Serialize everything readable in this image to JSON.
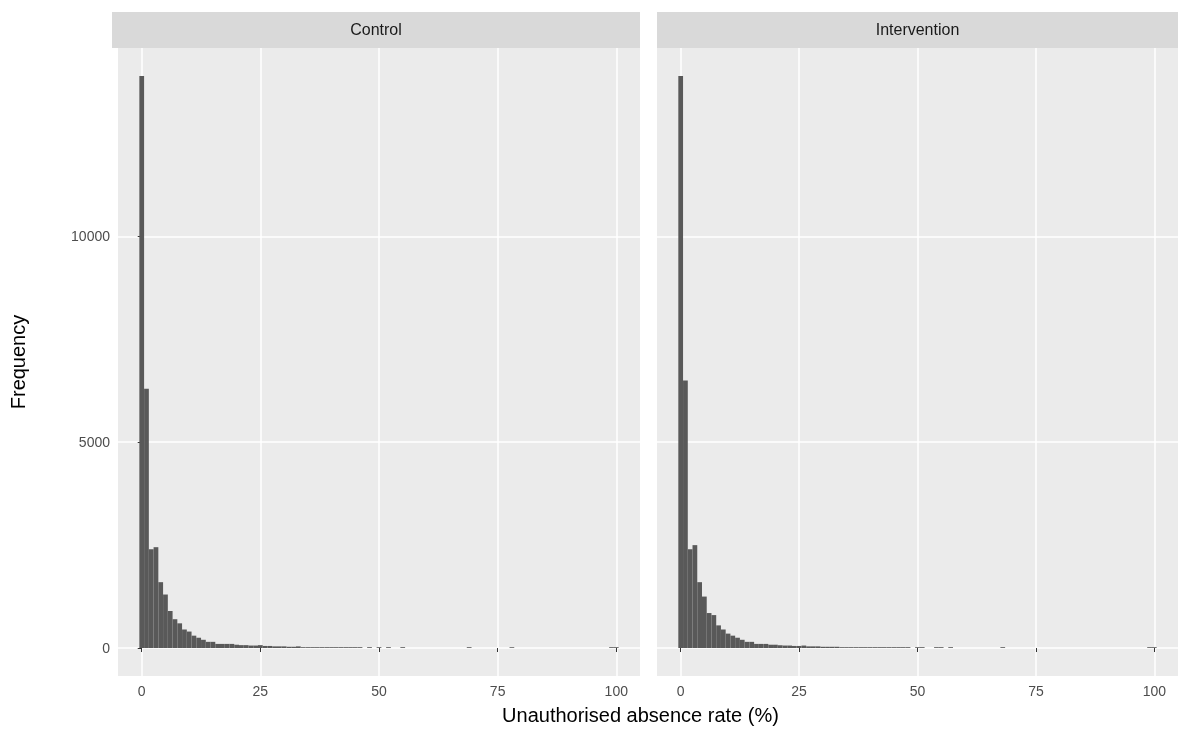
{
  "chart_data": [
    {
      "type": "histogram",
      "title": "Control",
      "xlabel": "Unauthorised absence rate (%)",
      "ylabel": "Frequency",
      "color": "#595959",
      "grid": true,
      "bins": [
        -0.5,
        0.5,
        1.5,
        2.5,
        3.5,
        4.5,
        5.5,
        6.5,
        7.5,
        8.5,
        9.5,
        10.5,
        11.5,
        12.5,
        13.5,
        14.5,
        15.5,
        16.5,
        17.5,
        18.5,
        19.5,
        20.5,
        21.5,
        22.5,
        23.5,
        24.5,
        25.5,
        26.5,
        27.5,
        28.5,
        29.5,
        30.5,
        31.5,
        32.5,
        33.5,
        34.5,
        35.5,
        36.5,
        37.5,
        38.5,
        39.5,
        40.5,
        41.5,
        42.5,
        43.5,
        44.5,
        45.5,
        46.5,
        47.5,
        48.5,
        49.5,
        50.5,
        51.5,
        52.5,
        53.5,
        54.5,
        55.5,
        56.5,
        57.5,
        58.5,
        59.5,
        60.5,
        61.5,
        62.5,
        63.5,
        64.5,
        65.5,
        66.5,
        67.5,
        68.5,
        69.5,
        70.5,
        71.5,
        72.5,
        73.5,
        74.5,
        75.5,
        76.5,
        77.5,
        78.5,
        79.5,
        80.5,
        81.5,
        82.5,
        83.5,
        84.5,
        85.5,
        86.5,
        87.5,
        88.5,
        89.5,
        90.5,
        91.5,
        92.5,
        93.5,
        94.5,
        95.5,
        96.5,
        97.5,
        98.5,
        99.5,
        100.5
      ],
      "values": [
        13900,
        6300,
        2400,
        2450,
        1600,
        1300,
        900,
        700,
        600,
        450,
        400,
        300,
        250,
        200,
        150,
        150,
        100,
        100,
        100,
        100,
        80,
        70,
        70,
        60,
        60,
        70,
        50,
        50,
        40,
        40,
        40,
        30,
        30,
        40,
        20,
        20,
        20,
        20,
        20,
        20,
        20,
        20,
        20,
        20,
        20,
        20,
        20,
        0,
        20,
        0,
        20,
        0,
        20,
        0,
        0,
        20,
        0,
        0,
        0,
        0,
        0,
        0,
        0,
        0,
        0,
        0,
        0,
        0,
        0,
        20,
        0,
        0,
        0,
        0,
        0,
        0,
        0,
        0,
        20,
        0,
        0,
        0,
        0,
        0,
        0,
        0,
        0,
        0,
        0,
        0,
        0,
        0,
        0,
        0,
        0,
        0,
        0,
        0,
        0,
        20,
        20
      ],
      "xlim": [
        -5,
        105
      ],
      "xticks": [
        0,
        25,
        50,
        75,
        100
      ],
      "ylim": [
        -680,
        14580
      ],
      "yticks": [
        0,
        5000,
        10000
      ]
    },
    {
      "type": "histogram",
      "title": "Intervention",
      "color": "#595959",
      "grid": true,
      "tick_labels": "x",
      "bins": [
        -0.5,
        0.5,
        1.5,
        2.5,
        3.5,
        4.5,
        5.5,
        6.5,
        7.5,
        8.5,
        9.5,
        10.5,
        11.5,
        12.5,
        13.5,
        14.5,
        15.5,
        16.5,
        17.5,
        18.5,
        19.5,
        20.5,
        21.5,
        22.5,
        23.5,
        24.5,
        25.5,
        26.5,
        27.5,
        28.5,
        29.5,
        30.5,
        31.5,
        32.5,
        33.5,
        34.5,
        35.5,
        36.5,
        37.5,
        38.5,
        39.5,
        40.5,
        41.5,
        42.5,
        43.5,
        44.5,
        45.5,
        46.5,
        47.5,
        48.5,
        49.5,
        50.5,
        51.5,
        52.5,
        53.5,
        54.5,
        55.5,
        56.5,
        57.5,
        58.5,
        59.5,
        60.5,
        61.5,
        62.5,
        63.5,
        64.5,
        65.5,
        66.5,
        67.5,
        68.5,
        69.5,
        70.5,
        71.5,
        72.5,
        73.5,
        74.5,
        75.5,
        76.5,
        77.5,
        78.5,
        79.5,
        80.5,
        81.5,
        82.5,
        83.5,
        84.5,
        85.5,
        86.5,
        87.5,
        88.5,
        89.5,
        90.5,
        91.5,
        92.5,
        93.5,
        94.5,
        95.5,
        96.5,
        97.5,
        98.5,
        99.5,
        100.5
      ],
      "values": [
        13900,
        6500,
        2400,
        2500,
        1600,
        1250,
        850,
        800,
        550,
        450,
        350,
        300,
        250,
        200,
        150,
        150,
        100,
        100,
        100,
        80,
        80,
        70,
        60,
        60,
        50,
        50,
        60,
        40,
        40,
        40,
        30,
        30,
        30,
        30,
        20,
        20,
        20,
        20,
        20,
        20,
        20,
        20,
        20,
        20,
        20,
        20,
        20,
        20,
        20,
        0,
        20,
        20,
        0,
        0,
        20,
        20,
        0,
        20,
        0,
        0,
        0,
        0,
        0,
        0,
        0,
        0,
        0,
        0,
        20,
        0,
        0,
        0,
        0,
        0,
        0,
        0,
        0,
        0,
        0,
        0,
        0,
        0,
        0,
        0,
        0,
        0,
        0,
        0,
        0,
        0,
        0,
        0,
        0,
        0,
        0,
        0,
        0,
        0,
        0,
        20,
        20
      ],
      "xlim": [
        -5,
        105
      ],
      "xticks": [
        0,
        25,
        50,
        75,
        100
      ],
      "ylim": [
        -680,
        14580
      ],
      "yticks": [
        0,
        5000,
        10000
      ]
    }
  ]
}
